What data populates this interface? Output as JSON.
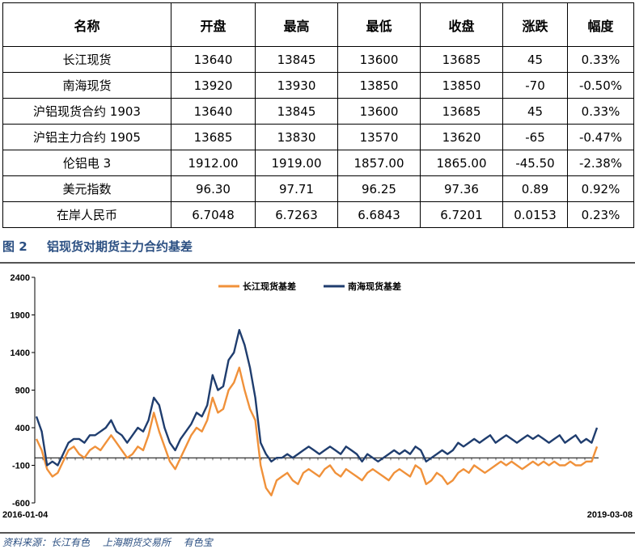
{
  "table": {
    "headers": [
      "名称",
      "开盘",
      "最高",
      "最低",
      "收盘",
      "涨跌",
      "幅度"
    ],
    "rows": [
      [
        "长江现货",
        "13640",
        "13845",
        "13600",
        "13685",
        "45",
        "0.33%"
      ],
      [
        "南海现货",
        "13920",
        "13930",
        "13850",
        "13850",
        "-70",
        "-0.50%"
      ],
      [
        "沪铝现货合约 1903",
        "13640",
        "13845",
        "13600",
        "13685",
        "45",
        "0.33%"
      ],
      [
        "沪铝主力合约 1905",
        "13685",
        "13830",
        "13570",
        "13620",
        "-65",
        "-0.47%"
      ],
      [
        "伦铝电 3",
        "1912.00",
        "1919.00",
        "1857.00",
        "1865.00",
        "-45.50",
        "-2.38%"
      ],
      [
        "美元指数",
        "96.30",
        "97.71",
        "96.25",
        "97.36",
        "0.89",
        "0.92%"
      ],
      [
        "在岸人民币",
        "6.7048",
        "6.7263",
        "6.6843",
        "6.7201",
        "0.0153",
        "0.23%"
      ]
    ]
  },
  "figure": {
    "number": "图 2",
    "title": "铝现货对期货主力合约基差"
  },
  "source": {
    "label": "资料来源：长江有色",
    "items": [
      "上海期货交易所",
      "有色宝"
    ]
  },
  "chart_data": {
    "type": "line",
    "x_range": [
      "2016-01-04",
      "2019-03-08"
    ],
    "x_tick_labels": [
      "2016-01-04",
      "2019-03-08"
    ],
    "ylim": [
      -600,
      2400
    ],
    "yticks": [
      2400,
      1900,
      1400,
      900,
      400,
      -100,
      -600
    ],
    "zero_line": true,
    "grid": false,
    "legend_position": "top-center",
    "colors": {
      "changjiang": "#f0913a",
      "nanhai": "#1f3d6e"
    },
    "series": [
      {
        "name": "长江现货基差",
        "color": "#f0913a",
        "values": [
          250,
          100,
          -150,
          -250,
          -200,
          -50,
          100,
          150,
          50,
          0,
          100,
          150,
          100,
          200,
          300,
          200,
          100,
          0,
          50,
          150,
          100,
          300,
          600,
          350,
          150,
          -50,
          -150,
          0,
          150,
          300,
          400,
          350,
          500,
          800,
          600,
          650,
          900,
          1000,
          1200,
          900,
          650,
          500,
          -100,
          -400,
          -500,
          -300,
          -250,
          -200,
          -300,
          -350,
          -200,
          -150,
          -200,
          -250,
          -150,
          -100,
          -200,
          -250,
          -150,
          -200,
          -250,
          -300,
          -200,
          -150,
          -200,
          -250,
          -300,
          -200,
          -150,
          -200,
          -250,
          -100,
          -150,
          -350,
          -300,
          -200,
          -250,
          -350,
          -300,
          -200,
          -150,
          -200,
          -100,
          -150,
          -200,
          -150,
          -100,
          -50,
          -100,
          -50,
          -100,
          -150,
          -100,
          -50,
          -100,
          -50,
          -100,
          -50,
          -100,
          -100,
          -50,
          -100,
          -100,
          -50,
          -50,
          150
        ]
      },
      {
        "name": "南海现货基差",
        "color": "#1f3d6e",
        "values": [
          550,
          350,
          -100,
          -50,
          -100,
          50,
          200,
          250,
          250,
          200,
          300,
          300,
          350,
          400,
          500,
          350,
          300,
          200,
          300,
          400,
          350,
          500,
          800,
          700,
          400,
          200,
          100,
          250,
          350,
          450,
          600,
          550,
          700,
          1100,
          900,
          950,
          1300,
          1400,
          1700,
          1500,
          1200,
          800,
          200,
          50,
          -50,
          0,
          0,
          50,
          0,
          50,
          100,
          150,
          100,
          50,
          100,
          150,
          100,
          50,
          150,
          100,
          50,
          -50,
          50,
          0,
          -50,
          0,
          50,
          100,
          50,
          100,
          50,
          150,
          100,
          -50,
          0,
          50,
          100,
          50,
          100,
          200,
          150,
          200,
          250,
          200,
          250,
          300,
          200,
          250,
          300,
          250,
          200,
          250,
          300,
          250,
          300,
          250,
          200,
          250,
          300,
          200,
          250,
          300,
          200,
          250,
          200,
          400
        ]
      }
    ]
  }
}
